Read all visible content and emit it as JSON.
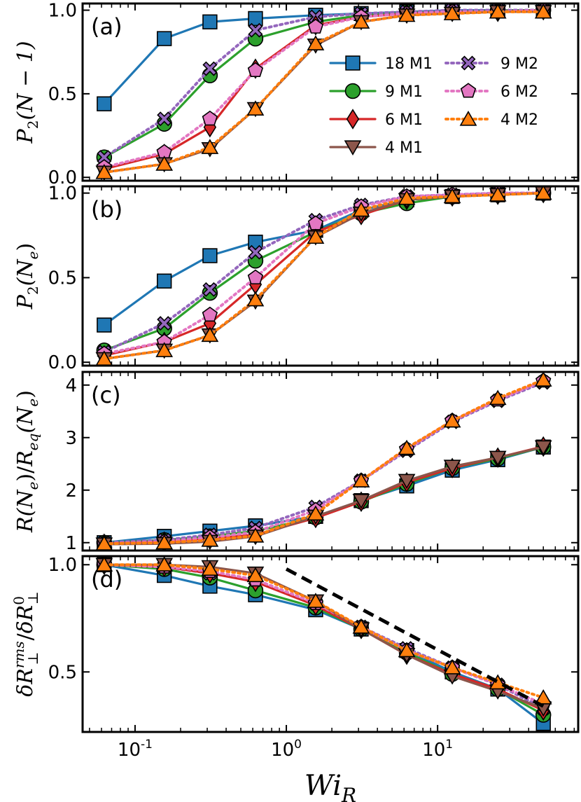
{
  "chart_data": {
    "type": "line",
    "xscale": "log",
    "xlim": [
      0.045,
      85
    ],
    "xlabel": "Wi_R",
    "xticks": [
      {
        "value": 0.1,
        "base": "10",
        "exp": "-1"
      },
      {
        "value": 1,
        "base": "10",
        "exp": "0"
      },
      {
        "value": 10,
        "base": "10",
        "exp": "1"
      }
    ],
    "x": [
      0.0625,
      0.156,
      0.3125,
      0.625,
      1.5625,
      3.125,
      6.25,
      12.5,
      25,
      50
    ],
    "legend": {
      "placement": "panel-a-right",
      "entries": [
        "18 M1",
        "9 M1",
        "6 M1",
        "4 M1",
        "9 M2",
        "6 M2",
        "4 M2"
      ]
    },
    "series_styles": [
      {
        "name": "18 M1",
        "color": "#1f77b4",
        "marker": "square",
        "dash": "solid"
      },
      {
        "name": "9 M1",
        "color": "#2ca02c",
        "marker": "circle",
        "dash": "solid"
      },
      {
        "name": "6 M1",
        "color": "#d62728",
        "marker": "diamond",
        "dash": "solid"
      },
      {
        "name": "4 M1",
        "color": "#8c564b",
        "marker": "triangle-down",
        "dash": "solid"
      },
      {
        "name": "9 M2",
        "color": "#9467bd",
        "marker": "x",
        "dash": "dotted"
      },
      {
        "name": "6 M2",
        "color": "#e377c2",
        "marker": "pentagon",
        "dash": "dotted"
      },
      {
        "name": "4 M2",
        "color": "#ff7f0e",
        "marker": "triangle-up",
        "dash": "dotted"
      }
    ],
    "panels": [
      {
        "id": "a",
        "tag": "(a)",
        "ylabel_main": "P",
        "ylabel_sub": "2",
        "ylabel_arg": "(N − 1)",
        "ylim": [
          -0.02,
          1.04
        ],
        "yticks": [
          {
            "value": 0.0,
            "label": "0.0"
          },
          {
            "value": 0.5,
            "label": "0.5"
          },
          {
            "value": 1.0,
            "label": "1.0"
          }
        ],
        "series": [
          {
            "name": "18 M1",
            "values": [
              0.44,
              0.83,
              0.93,
              0.95,
              0.97,
              0.98,
              0.99,
              1.0,
              1.0,
              1.0
            ]
          },
          {
            "name": "9 M1",
            "values": [
              0.12,
              0.32,
              0.61,
              0.83,
              0.93,
              0.97,
              0.99,
              0.99,
              1.0,
              1.0
            ]
          },
          {
            "name": "6 M1",
            "values": [
              0.05,
              0.14,
              0.3,
              0.65,
              0.91,
              0.96,
              0.98,
              0.99,
              0.99,
              1.0
            ]
          },
          {
            "name": "4 M1",
            "values": [
              0.03,
              0.08,
              0.17,
              0.41,
              0.79,
              0.93,
              0.97,
              0.98,
              0.99,
              0.99
            ]
          },
          {
            "name": "9 M2",
            "values": [
              0.12,
              0.35,
              0.65,
              0.88,
              0.96,
              0.98,
              0.99,
              1.0,
              1.0,
              1.0
            ]
          },
          {
            "name": "6 M2",
            "values": [
              0.06,
              0.15,
              0.35,
              0.64,
              0.9,
              0.96,
              0.98,
              0.99,
              0.99,
              1.0
            ]
          },
          {
            "name": "4 M2",
            "values": [
              0.03,
              0.08,
              0.18,
              0.41,
              0.8,
              0.93,
              0.97,
              0.98,
              0.99,
              0.99
            ]
          }
        ]
      },
      {
        "id": "b",
        "tag": "(b)",
        "ylabel_main": "P",
        "ylabel_sub": "2",
        "ylabel_arg": "(N",
        "ylabel_arg_sub": "e",
        "ylabel_close": ")",
        "ylim": [
          -0.02,
          1.04
        ],
        "yticks": [
          {
            "value": 0.0,
            "label": "0.0"
          },
          {
            "value": 0.5,
            "label": "0.5"
          },
          {
            "value": 1.0,
            "label": "1.0"
          }
        ],
        "series": [
          {
            "name": "18 M1",
            "values": [
              0.22,
              0.48,
              0.63,
              0.71,
              0.78,
              0.9,
              0.96,
              0.98,
              0.99,
              1.0
            ]
          },
          {
            "name": "9 M1",
            "values": [
              0.07,
              0.2,
              0.41,
              0.6,
              0.77,
              0.88,
              0.94,
              0.98,
              0.99,
              1.0
            ]
          },
          {
            "name": "6 M1",
            "values": [
              0.04,
              0.12,
              0.23,
              0.46,
              0.77,
              0.87,
              0.96,
              0.98,
              0.99,
              1.0
            ]
          },
          {
            "name": "4 M1",
            "values": [
              0.02,
              0.07,
              0.16,
              0.36,
              0.74,
              0.88,
              0.96,
              0.98,
              0.99,
              1.0
            ]
          },
          {
            "name": "9 M2",
            "values": [
              0.06,
              0.23,
              0.43,
              0.65,
              0.84,
              0.93,
              0.98,
              0.99,
              1.0,
              1.0
            ]
          },
          {
            "name": "6 M2",
            "values": [
              0.05,
              0.12,
              0.28,
              0.5,
              0.82,
              0.92,
              0.98,
              0.99,
              1.0,
              1.0
            ]
          },
          {
            "name": "4 M2",
            "values": [
              0.02,
              0.07,
              0.16,
              0.37,
              0.74,
              0.9,
              0.97,
              0.98,
              0.99,
              1.0
            ]
          }
        ]
      },
      {
        "id": "c",
        "tag": "(c)",
        "ylabel_main": "R",
        "ylabel_arg": "(N",
        "ylabel_arg_sub": "e",
        "ylabel_close": ")/",
        "ylabel_main2": "R",
        "ylabel_sub2": "eq",
        "ylabel_arg2": "(N",
        "ylabel_arg2_sub": "e",
        "ylabel_close2": ")",
        "ylim": [
          0.85,
          4.25
        ],
        "yticks": [
          {
            "value": 1,
            "label": "1"
          },
          {
            "value": 2,
            "label": "2"
          },
          {
            "value": 3,
            "label": "3"
          },
          {
            "value": 4,
            "label": "4"
          }
        ],
        "series": [
          {
            "name": "18 M1",
            "values": [
              1.0,
              1.12,
              1.22,
              1.32,
              1.5,
              1.8,
              2.08,
              2.38,
              2.58,
              2.82
            ]
          },
          {
            "name": "9 M1",
            "values": [
              1.0,
              1.05,
              1.12,
              1.22,
              1.48,
              1.78,
              2.12,
              2.42,
              2.6,
              2.82
            ]
          },
          {
            "name": "6 M1",
            "values": [
              0.98,
              1.02,
              1.08,
              1.15,
              1.47,
              1.78,
              2.15,
              2.42,
              2.62,
              2.83
            ]
          },
          {
            "name": "4 M1",
            "values": [
              0.97,
              0.98,
              1.02,
              1.12,
              1.5,
              1.8,
              2.18,
              2.45,
              2.62,
              2.82
            ]
          },
          {
            "name": "9 M2",
            "values": [
              1.0,
              1.05,
              1.15,
              1.28,
              1.68,
              2.18,
              2.75,
              3.3,
              3.7,
              4.05
            ]
          },
          {
            "name": "6 M2",
            "values": [
              0.98,
              1.02,
              1.1,
              1.2,
              1.62,
              2.18,
              2.78,
              3.32,
              3.72,
              4.08
            ]
          },
          {
            "name": "4 M2",
            "values": [
              0.98,
              1.0,
              1.05,
              1.13,
              1.55,
              2.18,
              2.8,
              3.32,
              3.75,
              4.1
            ]
          }
        ]
      },
      {
        "id": "d",
        "tag": "(d)",
        "ylabel_main": "δR",
        "ylabel_sub": "⊥",
        "ylabel_sup": "rms",
        "ylabel_slash": "/",
        "ylabel_main2": "δR",
        "ylabel_sub2": "⊥",
        "ylabel_sup2": "0",
        "ylim": [
          0.22,
          1.04
        ],
        "yticks": [
          {
            "value": 0.5,
            "label": "0.5"
          },
          {
            "value": 1.0,
            "label": "1.0"
          }
        ],
        "series": [
          {
            "name": "18 M1",
            "values": [
              1.0,
              0.95,
              0.9,
              0.86,
              0.79,
              0.7,
              0.6,
              0.5,
              0.42,
              0.26
            ]
          },
          {
            "name": "9 M1",
            "values": [
              1.0,
              0.98,
              0.94,
              0.88,
              0.8,
              0.7,
              0.59,
              0.49,
              0.42,
              0.3
            ]
          },
          {
            "name": "6 M1",
            "values": [
              1.0,
              0.99,
              0.96,
              0.92,
              0.81,
              0.7,
              0.58,
              0.49,
              0.42,
              0.32
            ]
          },
          {
            "name": "4 M1",
            "values": [
              1.0,
              1.0,
              0.99,
              0.96,
              0.83,
              0.7,
              0.58,
              0.48,
              0.41,
              0.33
            ]
          },
          {
            "name": "9 M2",
            "values": [
              1.0,
              0.99,
              0.96,
              0.93,
              0.82,
              0.71,
              0.61,
              0.52,
              0.44,
              0.33
            ]
          },
          {
            "name": "6 M2",
            "values": [
              1.0,
              0.99,
              0.97,
              0.93,
              0.82,
              0.71,
              0.6,
              0.52,
              0.44,
              0.35
            ]
          },
          {
            "name": "4 M2",
            "values": [
              1.0,
              1.0,
              0.98,
              0.95,
              0.83,
              0.71,
              0.6,
              0.52,
              0.45,
              0.38
            ]
          }
        ],
        "fit_line": {
          "style": "dashed",
          "color": "#000000",
          "x": [
            1.0,
            50
          ],
          "y": [
            0.98,
            0.34
          ]
        }
      }
    ]
  }
}
